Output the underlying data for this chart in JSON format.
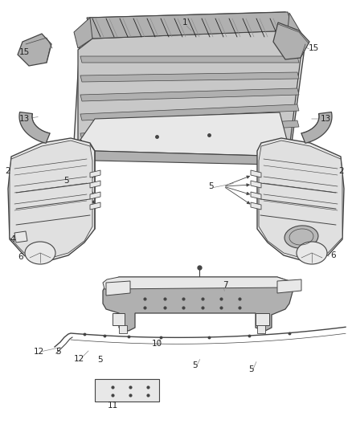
{
  "bg": "#ffffff",
  "lc": "#444444",
  "lc_light": "#888888",
  "lc_dark": "#222222",
  "gray_fill": "#d0d0d0",
  "gray_mid": "#b0b0b0",
  "gray_light": "#e8e8e8",
  "label_fs": 7.5,
  "parts_labels": [
    [
      "1",
      230,
      28
    ],
    [
      "15",
      32,
      62
    ],
    [
      "15",
      363,
      58
    ],
    [
      "13",
      42,
      148
    ],
    [
      "13",
      313,
      148
    ],
    [
      "2",
      14,
      210
    ],
    [
      "2",
      388,
      210
    ],
    [
      "5",
      95,
      222
    ],
    [
      "5",
      274,
      228
    ],
    [
      "4",
      20,
      298
    ],
    [
      "6",
      55,
      318
    ],
    [
      "6",
      365,
      315
    ],
    [
      "7",
      258,
      360
    ],
    [
      "12",
      52,
      435
    ],
    [
      "5",
      82,
      435
    ],
    [
      "12",
      107,
      435
    ],
    [
      "5",
      133,
      443
    ],
    [
      "10",
      198,
      425
    ],
    [
      "5",
      248,
      450
    ],
    [
      "5",
      317,
      455
    ],
    [
      "11",
      148,
      490
    ]
  ]
}
